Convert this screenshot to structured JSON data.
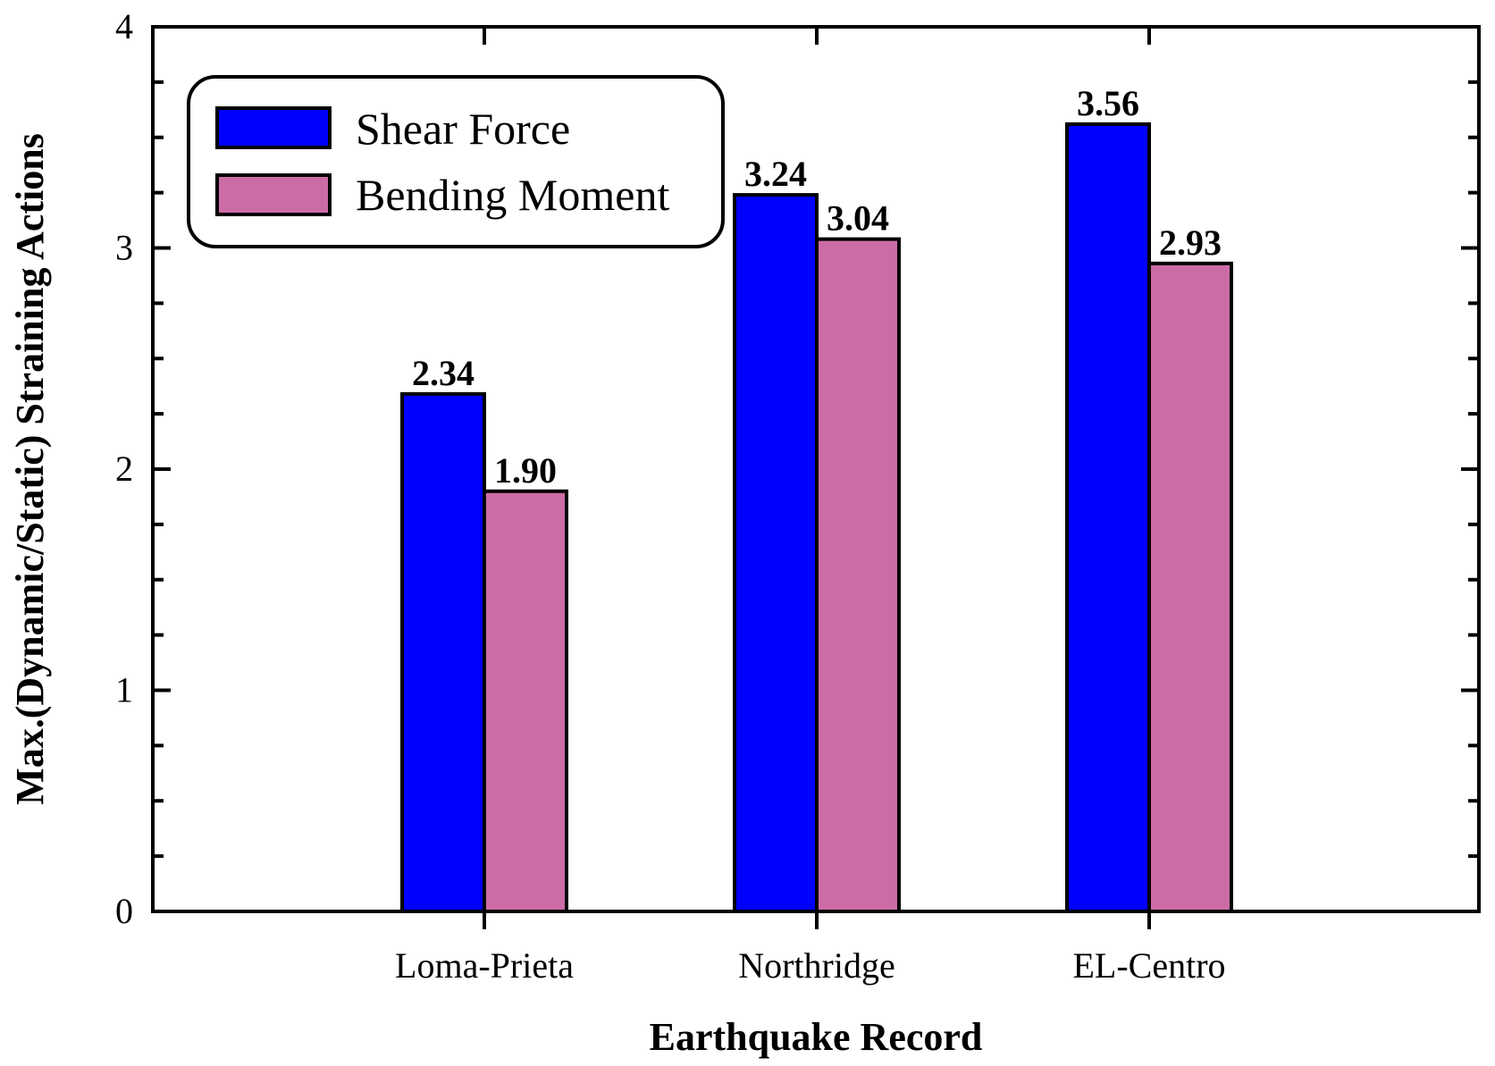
{
  "chart_data": {
    "type": "bar",
    "categories": [
      "Loma-Prieta",
      "Northridge",
      "EL-Centro"
    ],
    "series": [
      {
        "name": "Shear Force",
        "values": [
          2.34,
          3.24,
          3.56
        ],
        "labels": [
          "2.34",
          "3.24",
          "3.56"
        ],
        "color": "#0000ff"
      },
      {
        "name": "Bending Moment",
        "values": [
          1.9,
          3.04,
          2.93
        ],
        "labels": [
          "1.90",
          "3.04",
          "2.93"
        ],
        "color": "#cc6ca6"
      }
    ],
    "title": "",
    "xlabel": "Earthquake Record",
    "ylabel": "Max.(Dynamic/Static) Straining Actions",
    "ylim": [
      0,
      4
    ],
    "yticks": [
      0,
      1,
      2,
      3,
      4
    ],
    "ytick_labels": [
      "0",
      "1",
      "2",
      "3",
      "4"
    ],
    "grid": false,
    "legend_position": "top-left"
  }
}
